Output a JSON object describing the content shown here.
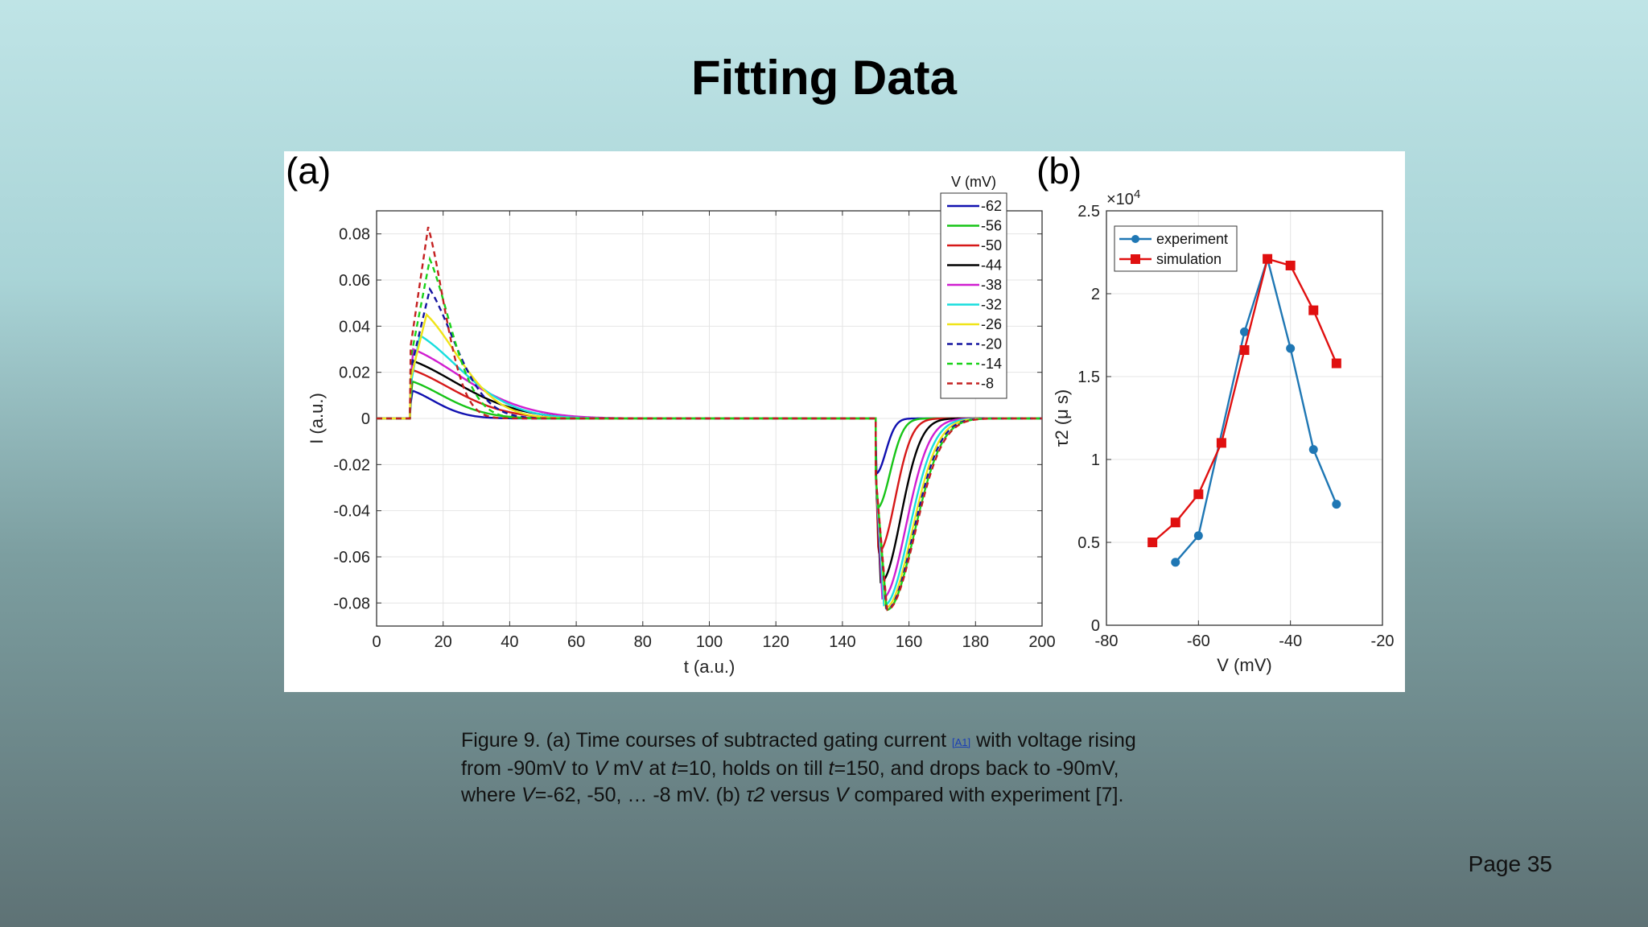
{
  "slide": {
    "title": "Fitting Data",
    "page": "Page 35",
    "caption": {
      "line1_a": "Figure 9. (a) Time courses of subtracted gating current ",
      "ref": "[A1]",
      "line1_b": " with voltage rising",
      "line2": [
        {
          "text": "from -90mV to ",
          "italic": false
        },
        {
          "text": "V",
          "italic": true
        },
        {
          "text": " mV at ",
          "italic": false
        },
        {
          "text": "t",
          "italic": true
        },
        {
          "text": "=10, holds on till ",
          "italic": false
        },
        {
          "text": "t",
          "italic": true
        },
        {
          "text": "=150, and drops back to -90mV,",
          "italic": false
        }
      ],
      "line3": [
        {
          "text": "where ",
          "italic": false
        },
        {
          "text": "V",
          "italic": true
        },
        {
          "text": "=-62, -50, … -8 mV. (b) ",
          "italic": false
        },
        {
          "text": "τ2",
          "italic": true
        },
        {
          "text": " versus ",
          "italic": false
        },
        {
          "text": "V",
          "italic": true
        },
        {
          "text": " compared with experiment [7].",
          "italic": false
        }
      ]
    }
  },
  "chart_data": [
    {
      "panel": "(a)",
      "type": "line",
      "xlabel": "t (a.u.)",
      "ylabel": "I (a.u.)",
      "xlim": [
        0,
        200
      ],
      "ylim": [
        -0.09,
        0.09
      ],
      "xticks": [
        0,
        20,
        40,
        60,
        80,
        100,
        120,
        140,
        160,
        180,
        200
      ],
      "yticks": [
        -0.08,
        -0.06,
        -0.04,
        -0.02,
        0,
        0.02,
        0.04,
        0.06,
        0.08
      ],
      "ytick_labels": [
        "-0.08",
        "-0.06",
        "-0.04",
        "-0.02",
        "0",
        "0.02",
        "0.04",
        "0.06",
        "0.08"
      ],
      "grid": true,
      "legend": {
        "title": "V (mV)",
        "position": "top-right"
      },
      "on_time": 10,
      "off_time": 150,
      "series": [
        {
          "name": "-62",
          "color": "#1010b0",
          "dash": false,
          "on_peak": 0.012,
          "on_peak_t": 10.8,
          "on_tau": 8,
          "off_peak": -0.024,
          "off_peak_t": 150,
          "off_tau": 3
        },
        {
          "name": "-56",
          "color": "#17c417",
          "dash": false,
          "on_peak": 0.016,
          "on_peak_t": 10.8,
          "on_tau": 11,
          "off_peak": -0.039,
          "off_peak_t": 150.3,
          "off_tau": 4
        },
        {
          "name": "-50",
          "color": "#d61818",
          "dash": false,
          "on_peak": 0.021,
          "on_peak_t": 10.8,
          "on_tau": 14,
          "off_peak": -0.058,
          "off_peak_t": 150.8,
          "off_tau": 5
        },
        {
          "name": "-44",
          "color": "#000000",
          "dash": false,
          "on_peak": 0.025,
          "on_peak_t": 10.8,
          "on_tau": 16,
          "off_peak": -0.071,
          "off_peak_t": 151.5,
          "off_tau": 6
        },
        {
          "name": "-38",
          "color": "#d01ed0",
          "dash": false,
          "on_peak": 0.03,
          "on_peak_t": 11,
          "on_tau": 17,
          "off_peak": -0.078,
          "off_peak_t": 152,
          "off_tau": 7
        },
        {
          "name": "-32",
          "color": "#18dede",
          "dash": false,
          "on_peak": 0.036,
          "on_peak_t": 13,
          "on_tau": 14,
          "off_peak": -0.081,
          "off_peak_t": 152.5,
          "off_tau": 7.5
        },
        {
          "name": "-26",
          "color": "#f0e418",
          "dash": false,
          "on_peak": 0.045,
          "on_peak_t": 15,
          "on_tau": 11,
          "off_peak": -0.082,
          "off_peak_t": 153,
          "off_tau": 7.8
        },
        {
          "name": "-20",
          "color": "#1414a0",
          "dash": true,
          "on_peak": 0.056,
          "on_peak_t": 16,
          "on_tau": 8.5,
          "off_peak": -0.083,
          "off_peak_t": 153.2,
          "off_tau": 8
        },
        {
          "name": "-14",
          "color": "#19d219",
          "dash": true,
          "on_peak": 0.069,
          "on_peak_t": 16,
          "on_tau": 7,
          "off_peak": -0.083,
          "off_peak_t": 153.3,
          "off_tau": 8.2
        },
        {
          "name": "-8",
          "color": "#c42020",
          "dash": true,
          "on_peak": 0.083,
          "on_peak_t": 15.5,
          "on_tau": 5.5,
          "off_peak": -0.083,
          "off_peak_t": 153.4,
          "off_tau": 8.3
        }
      ]
    },
    {
      "panel": "(b)",
      "type": "line",
      "xlabel": "V (mV)",
      "ylabel": "τ2 (μ s)",
      "exponent_label": "×10",
      "exponent": "4",
      "xlim": [
        -80,
        -20
      ],
      "ylim": [
        0,
        2.5
      ],
      "xticks": [
        -80,
        -60,
        -40,
        -20
      ],
      "yticks": [
        0,
        0.5,
        1,
        1.5,
        2,
        2.5
      ],
      "ytick_labels": [
        "0",
        "0.5",
        "1",
        "1.5",
        "2",
        "2.5"
      ],
      "grid": true,
      "legend": {
        "position": "top-left"
      },
      "series": [
        {
          "name": "experiment",
          "color": "#1f77b4",
          "marker": "circle",
          "x": [
            -65,
            -60,
            -50,
            -45,
            -40,
            -35,
            -30
          ],
          "y": [
            0.38,
            0.54,
            1.77,
            2.21,
            1.67,
            1.06,
            0.73
          ]
        },
        {
          "name": "simulation",
          "color": "#e01010",
          "marker": "square",
          "x": [
            -70,
            -65,
            -60,
            -55,
            -50,
            -45,
            -40,
            -35,
            -30
          ],
          "y": [
            0.5,
            0.62,
            0.79,
            1.1,
            1.66,
            2.21,
            2.17,
            1.9,
            1.58
          ]
        }
      ]
    }
  ]
}
